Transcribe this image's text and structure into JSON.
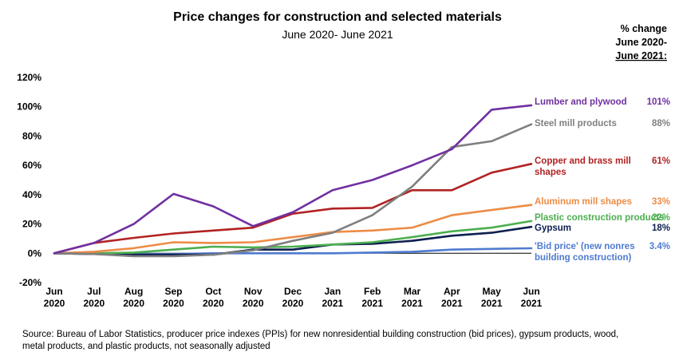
{
  "chart_data": {
    "type": "line",
    "title": "Price changes for construction and selected materials",
    "subtitle": "June 2020- June 2021",
    "pct_header": [
      "% change",
      "June 2020-",
      "June 2021:"
    ],
    "x_ticks": [
      [
        "Jun",
        "2020"
      ],
      [
        "Jul",
        "2020"
      ],
      [
        "Aug",
        "2020"
      ],
      [
        "Sep",
        "2020"
      ],
      [
        "Oct",
        "2020"
      ],
      [
        "Nov",
        "2020"
      ],
      [
        "Dec",
        "2020"
      ],
      [
        "Jan",
        "2021"
      ],
      [
        "Feb",
        "2021"
      ],
      [
        "Mar",
        "2021"
      ],
      [
        "Apr",
        "2021"
      ],
      [
        "May",
        "2021"
      ],
      [
        "Jun",
        "2021"
      ]
    ],
    "y_ticks": [
      "-20%",
      "0%",
      "20%",
      "40%",
      "60%",
      "80%",
      "100%",
      "120%"
    ],
    "ylim": [
      -20,
      120
    ],
    "series": [
      {
        "name": "Lumber and plywood",
        "label_lines": [
          "Lumber and plywood"
        ],
        "change": "101%",
        "color": "#7030a0",
        "values": [
          0,
          7,
          20,
          40.5,
          32,
          18.5,
          28,
          43,
          50,
          60,
          71,
          98,
          101
        ]
      },
      {
        "name": "Steel mill products",
        "label_lines": [
          "Steel mill products"
        ],
        "change": "88%",
        "color": "#7f7f7f",
        "values": [
          0,
          -0.5,
          -2,
          -2,
          -1,
          2,
          8.5,
          14,
          26,
          45.5,
          72.5,
          76.5,
          88
        ]
      },
      {
        "name": "Copper and brass mill shapes",
        "label_lines": [
          "Copper and brass mill",
          "shapes"
        ],
        "change": "61%",
        "color": "#b22222",
        "values": [
          0,
          7,
          10.5,
          13.5,
          15.5,
          17.5,
          27,
          30.5,
          31,
          43,
          43,
          55,
          61
        ]
      },
      {
        "name": "Aluminum mill shapes",
        "label_lines": [
          "Aluminum mill shapes"
        ],
        "change": "33%",
        "color": "#ed8c46",
        "values": [
          0,
          1,
          3.5,
          7.5,
          7,
          7.5,
          11,
          14.5,
          15.5,
          17.5,
          26,
          29.5,
          33
        ]
      },
      {
        "name": "Plastic construction products",
        "label_lines": [
          "Plastic construction products"
        ],
        "change": "22%",
        "color": "#4caf50",
        "values": [
          0,
          0,
          0.5,
          2.5,
          4.5,
          4,
          4.5,
          6,
          7.5,
          11,
          15,
          17.5,
          22
        ]
      },
      {
        "name": "Gypsum",
        "label_lines": [
          "Gypsum"
        ],
        "change": "18%",
        "color": "#0d1f4f",
        "values": [
          0,
          -0.5,
          -1,
          -1,
          -1,
          2.5,
          2.5,
          6,
          6.5,
          8.5,
          12,
          14,
          18
        ]
      },
      {
        "name": "'Bid price' (new nonres building construction)",
        "label_lines": [
          "'Bid price' (new nonres",
          "building construction)"
        ],
        "change": "3.4%",
        "color": "#4f7bd0",
        "values": [
          0,
          -0.5,
          -0.5,
          -0.5,
          0,
          0,
          0,
          0,
          0.5,
          1,
          2.5,
          3,
          3.4
        ]
      }
    ]
  },
  "source": {
    "lines": [
      "Source: Bureau of Labor Statistics, producer price indexes (PPIs) for new nonresidential building construction (bid prices), gypsum products, wood,",
      "metal products, and plastic products, not seasonally adjusted"
    ]
  }
}
